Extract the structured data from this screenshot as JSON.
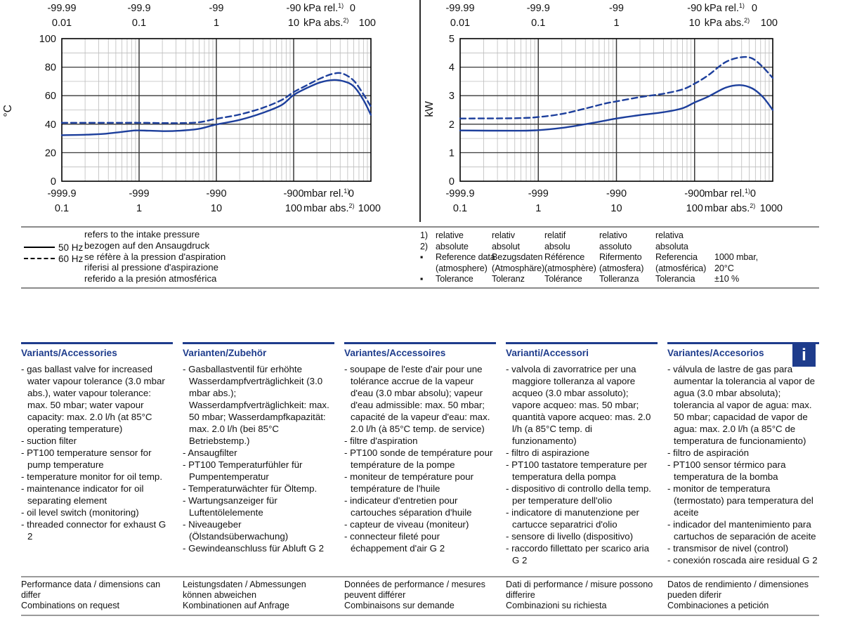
{
  "colors": {
    "navy": "#1e3c8c",
    "curve": "#1d3f9c",
    "grid_minor": "#bcbcbc",
    "grid_major": "#3a3a3a",
    "border": "#000000",
    "rule_gray": "#8b8b8b"
  },
  "chart_data": [
    {
      "type": "line",
      "unit": "°C",
      "x_scale": "log",
      "x_range": [
        0.1,
        1000
      ],
      "ylim": [
        0,
        100
      ],
      "yticks": [
        0,
        20,
        40,
        60,
        80,
        100
      ],
      "y_minor": 10,
      "top_axis": {
        "rel_labels": [
          "-99.99",
          "-99.9",
          "-99",
          "-90"
        ],
        "rel_unit": "kPa rel.",
        "rel_sup": "1)",
        "rel_end": "0",
        "abs_labels": [
          "0.01",
          "0.1",
          "1",
          "10"
        ],
        "abs_unit": "kPa abs.",
        "abs_sup": "2)",
        "abs_end": "100"
      },
      "bottom_axis": {
        "rel_labels": [
          "-999.9",
          "-999",
          "-990",
          "-900"
        ],
        "rel_unit": "mbar rel.",
        "rel_sup": "1)",
        "rel_end": "0",
        "abs_labels": [
          "0.1",
          "1",
          "10",
          "100"
        ],
        "abs_unit": "mbar abs.",
        "abs_sup": "2)",
        "abs_end": "1000"
      },
      "series": [
        {
          "name": "50 Hz",
          "style": "solid",
          "points": [
            [
              0.1,
              32.3
            ],
            [
              0.2,
              32.6
            ],
            [
              0.35,
              33.2
            ],
            [
              0.6,
              34.6
            ],
            [
              0.9,
              35.6
            ],
            [
              1.4,
              35.4
            ],
            [
              2.2,
              35.1
            ],
            [
              3.5,
              35.5
            ],
            [
              6,
              36.8
            ],
            [
              10,
              39.8
            ],
            [
              20,
              43
            ],
            [
              40,
              48
            ],
            [
              70,
              53.5
            ],
            [
              100,
              60.5
            ],
            [
              150,
              65.5
            ],
            [
              220,
              69.3
            ],
            [
              320,
              71
            ],
            [
              450,
              70
            ],
            [
              600,
              66.5
            ],
            [
              800,
              57
            ],
            [
              1000,
              46.5
            ]
          ]
        },
        {
          "name": "60 Hz",
          "style": "dashed",
          "points": [
            [
              0.1,
              41
            ],
            [
              0.5,
              41
            ],
            [
              1,
              41
            ],
            [
              2,
              40.8
            ],
            [
              3.5,
              40.8
            ],
            [
              6,
              41.4
            ],
            [
              10,
              43.8
            ],
            [
              20,
              46.8
            ],
            [
              40,
              51.5
            ],
            [
              70,
              57
            ],
            [
              100,
              62.5
            ],
            [
              150,
              67.5
            ],
            [
              220,
              72
            ],
            [
              320,
              75.3
            ],
            [
              430,
              75.5
            ],
            [
              600,
              70.5
            ],
            [
              800,
              61
            ],
            [
              1000,
              52.3
            ]
          ]
        }
      ],
      "layout": {
        "plot_l": 88,
        "plot_r": 528
      }
    },
    {
      "type": "line",
      "unit": "kW",
      "x_scale": "log",
      "x_range": [
        0.1,
        1000
      ],
      "ylim": [
        0,
        5
      ],
      "yticks": [
        0,
        1,
        2,
        3,
        4,
        5
      ],
      "y_minor": 0.5,
      "top_axis": {
        "rel_labels": [
          "-99.99",
          "-99.9",
          "-99",
          "-90"
        ],
        "rel_unit": "kPa rel.",
        "rel_sup": "1)",
        "rel_end": "0",
        "abs_labels": [
          "0.01",
          "0.1",
          "1",
          "10"
        ],
        "abs_unit": "kPa abs.",
        "abs_sup": "2)",
        "abs_end": "100"
      },
      "bottom_axis": {
        "rel_labels": [
          "-999.9",
          "-999",
          "-990",
          "-900"
        ],
        "rel_unit": "mbar rel.",
        "rel_sup": "1)",
        "rel_end": "0",
        "abs_labels": [
          "0.1",
          "1",
          "10",
          "100"
        ],
        "abs_unit": "mbar abs.",
        "abs_sup": "2)",
        "abs_end": "1000"
      },
      "series": [
        {
          "name": "50 Hz",
          "style": "solid",
          "points": [
            [
              0.1,
              1.78
            ],
            [
              0.5,
              1.77
            ],
            [
              1,
              1.79
            ],
            [
              2,
              1.87
            ],
            [
              4,
              2.0
            ],
            [
              7,
              2.12
            ],
            [
              10,
              2.2
            ],
            [
              20,
              2.32
            ],
            [
              40,
              2.42
            ],
            [
              70,
              2.56
            ],
            [
              100,
              2.76
            ],
            [
              150,
              2.97
            ],
            [
              250,
              3.28
            ],
            [
              380,
              3.37
            ],
            [
              550,
              3.25
            ],
            [
              750,
              2.95
            ],
            [
              1000,
              2.5
            ]
          ]
        },
        {
          "name": "60 Hz",
          "style": "dashed",
          "points": [
            [
              0.1,
              2.2
            ],
            [
              0.5,
              2.21
            ],
            [
              1,
              2.25
            ],
            [
              2,
              2.36
            ],
            [
              4,
              2.55
            ],
            [
              7,
              2.72
            ],
            [
              10,
              2.8
            ],
            [
              20,
              2.95
            ],
            [
              40,
              3.07
            ],
            [
              70,
              3.22
            ],
            [
              100,
              3.42
            ],
            [
              150,
              3.72
            ],
            [
              250,
              4.18
            ],
            [
              400,
              4.35
            ],
            [
              550,
              4.3
            ],
            [
              750,
              4.0
            ],
            [
              1000,
              3.62
            ]
          ]
        }
      ],
      "layout": {
        "plot_l": 55,
        "plot_r": 500
      }
    }
  ],
  "legend": {
    "entries": [
      {
        "label": "50 Hz",
        "style": "solid"
      },
      {
        "label": "60 Hz",
        "style": "dashed"
      }
    ],
    "intake_note": [
      "refers to the intake pressure",
      "bezogen auf den Ansaugdruck",
      "se réfère à la pression d'aspiration",
      "riferisi al pressione d'aspirazione",
      "referido a la presión atmosférica"
    ]
  },
  "notes": {
    "rows": [
      {
        "marker": "1)",
        "cells": [
          "relative",
          "relativ",
          "relatif",
          "relativo",
          "relativa"
        ],
        "value": ""
      },
      {
        "marker": "2)",
        "cells": [
          "absolute",
          "absolut",
          "absolu",
          "assoluto",
          "absoluta"
        ],
        "value": ""
      },
      {
        "marker": "▪",
        "cells": [
          "Reference data\n(atmosphere)",
          "Bezugsdaten\n(Atmosphäre)",
          "Référence\n(atmosphère)",
          "Rifermento\n(atmosfera)",
          "Referencia\n(atmosférica)"
        ],
        "value": "1000 mbar,\n20°C"
      },
      {
        "marker": "▪",
        "cells": [
          "Tolerance",
          "Toleranz",
          "Tolérance",
          "Tolleranza",
          "Tolerancia"
        ],
        "value": "±10 %"
      }
    ]
  },
  "variants": {
    "info_icon": "i",
    "columns": [
      {
        "header": "Variants/Accessories",
        "items": [
          "gas ballast valve for increased water vapour tolerance (3.0 mbar abs.), water vapour tolerance: max. 50 mbar; water vapour capacity: max. 2.0 l/h (at 85°C operating temperature)",
          "suction filter",
          "PT100 temperature sensor for pump temperature",
          "temperature monitor for oil temp.",
          "maintenance indicator for oil separating element",
          "oil level switch (monitoring)",
          "threaded connector for exhaust G 2"
        ]
      },
      {
        "header": "Varianten/Zubehör",
        "items": [
          "Gasballastventil für erhöhte Wasserdampfverträglichkeit (3.0 mbar abs.); Wasserdampfverträglichkeit: max. 50 mbar; Wasserdampfkapazität: max. 2.0 l/h (bei 85°C Betriebstemp.)",
          "Ansaugfilter",
          "PT100 Temperaturfühler für Pumpentemperatur",
          "Temperaturwächter für Öltemp.",
          "Wartungsanzeiger für Luftentölelemente",
          "Niveaugeber (Ölstandsüberwachung)",
          "Gewindeanschluss für Abluft G 2"
        ]
      },
      {
        "header": "Variantes/Accessoires",
        "items": [
          "soupape de l'este d'air pour une tolérance accrue de la vapeur d'eau (3.0 mbar absolu); vapeur d'eau admissible: max. 50 mbar; capacité de la vapeur d'eau: max. 2.0 l/h (à 85°C temp. de service)",
          "filtre d'aspiration",
          "PT100 sonde de température pour température de la pompe",
          "moniteur de température pour température de l'huile",
          "indicateur d'entretien pour cartouches séparation d'huile",
          "capteur de viveau (moniteur)",
          "connecteur fileté pour échappement d'air G 2"
        ]
      },
      {
        "header": "Varianti/Accessori",
        "items": [
          "valvola di zavorratrice per una maggiore tolleranza al vapore acqueo (3.0 mbar assoluto); vapore acqueo: mas. 50 mbar; quantità vapore acqueo: mas. 2.0 l/h (a 85°C temp. di funzionamento)",
          "filtro di aspirazione",
          "PT100 tastatore temperature per temperatura della pompa",
          "dispositivo di controllo della temp. per temperature dell'olio",
          "indicatore di manutenzione per cartucce separatrici d'olio",
          "sensore di livello (dispositivo)",
          "raccordo fillettato per scarico aria G 2"
        ]
      },
      {
        "header": "Variantes/Accesorios",
        "items": [
          "válvula de lastre de gas para aumentar la tolerancia al vapor de agua (3.0 mbar absoluta); tolerancia al vapor de agua: max. 50 mbar; capacidad de vapor de agua: max. 2.0 l/h (a 85°C de temperatura de funcionamiento)",
          "filtro de aspiración",
          "PT100 sensor térmico para temperatura de la bomba",
          "monitor de temperatura (termostato) para temperatura del aceite",
          "indicador del mantenimiento para cartuchos de separación de aceite",
          "transmisor de nivel (control)",
          "conexión roscada aire residual G 2"
        ]
      }
    ]
  },
  "footer": {
    "columns": [
      [
        "Performance data / dimensions can differ",
        "Combinations on request"
      ],
      [
        "Leistungsdaten / Abmessungen können abweichen",
        "Kombinationen auf Anfrage"
      ],
      [
        "Données de performance / mesures peuvent différer",
        "Combinaisons sur demande"
      ],
      [
        "Dati di performance / misure possono differire",
        "Combinazioni su richiesta"
      ],
      [
        "Datos de rendimiento / dimensiones pueden diferir",
        "Combinaciones a petición"
      ]
    ]
  }
}
